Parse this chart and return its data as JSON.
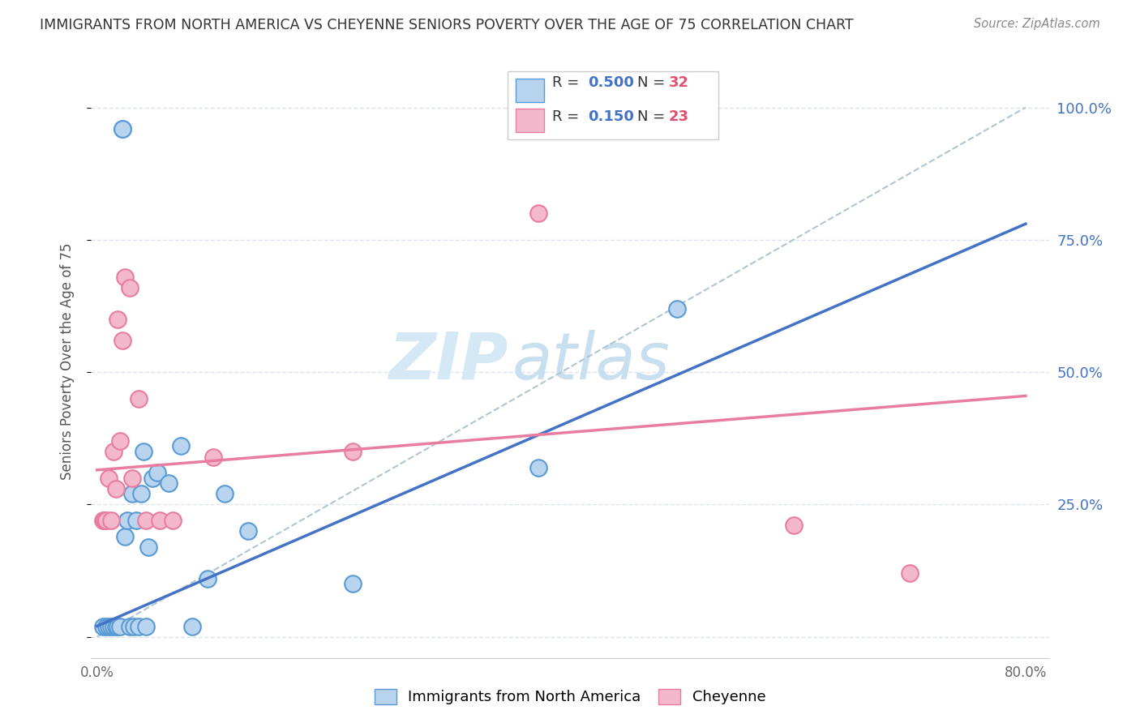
{
  "title": "IMMIGRANTS FROM NORTH AMERICA VS CHEYENNE SENIORS POVERTY OVER THE AGE OF 75 CORRELATION CHART",
  "source": "Source: ZipAtlas.com",
  "ylabel": "Seniors Poverty Over the Age of 75",
  "xlim": [
    -0.005,
    0.82
  ],
  "ylim": [
    -0.04,
    1.08
  ],
  "yticks": [
    0.0,
    0.25,
    0.5,
    0.75,
    1.0
  ],
  "ytick_labels": [
    "",
    "25.0%",
    "50.0%",
    "75.0%",
    "100.0%"
  ],
  "xticks": [
    0.0,
    0.1,
    0.2,
    0.3,
    0.4,
    0.5,
    0.6,
    0.7,
    0.8
  ],
  "xtick_labels": [
    "0.0%",
    "",
    "",
    "",
    "",
    "",
    "",
    "",
    "80.0%"
  ],
  "blue_R": 0.5,
  "blue_N": 32,
  "pink_R": 0.15,
  "pink_N": 23,
  "blue_marker_face": "#b8d4ee",
  "blue_marker_edge": "#5b9bd5",
  "pink_marker_face": "#f4b8cc",
  "pink_marker_edge": "#e87da0",
  "blue_line_color": "#4472c4",
  "pink_line_color": "#e87da0",
  "dashed_line_color": "#aec6cf",
  "watermark_zip_color": "#d5e8f5",
  "watermark_atlas_color": "#c8dff0",
  "legend_text_color": "#4472c4",
  "legend_N_color": "#e05070",
  "background_color": "#ffffff",
  "grid_color": "#dde3ee",
  "right_axis_color": "#4472c4",
  "blue_scatter_x": [
    0.022,
    0.022,
    0.005,
    0.008,
    0.01,
    0.012,
    0.014,
    0.016,
    0.018,
    0.02,
    0.024,
    0.026,
    0.028,
    0.03,
    0.032,
    0.034,
    0.036,
    0.038,
    0.04,
    0.042,
    0.044,
    0.048,
    0.052,
    0.062,
    0.072,
    0.082,
    0.11,
    0.13,
    0.22,
    0.38,
    0.5,
    0.095
  ],
  "blue_scatter_y": [
    0.96,
    0.96,
    0.02,
    0.02,
    0.02,
    0.02,
    0.02,
    0.02,
    0.02,
    0.02,
    0.19,
    0.22,
    0.02,
    0.27,
    0.02,
    0.22,
    0.02,
    0.27,
    0.35,
    0.02,
    0.17,
    0.3,
    0.31,
    0.29,
    0.36,
    0.02,
    0.27,
    0.2,
    0.1,
    0.32,
    0.62,
    0.11
  ],
  "pink_scatter_x": [
    0.005,
    0.006,
    0.007,
    0.008,
    0.01,
    0.012,
    0.014,
    0.016,
    0.018,
    0.02,
    0.022,
    0.024,
    0.03,
    0.042,
    0.054,
    0.065,
    0.1,
    0.22,
    0.38,
    0.6,
    0.7,
    0.028,
    0.036
  ],
  "pink_scatter_y": [
    0.22,
    0.22,
    0.22,
    0.22,
    0.3,
    0.22,
    0.35,
    0.28,
    0.6,
    0.37,
    0.56,
    0.68,
    0.3,
    0.22,
    0.22,
    0.22,
    0.34,
    0.35,
    0.8,
    0.21,
    0.12,
    0.66,
    0.45
  ],
  "blue_line_x0": 0.0,
  "blue_line_y0": 0.02,
  "blue_line_x1": 0.8,
  "blue_line_y1": 0.78,
  "pink_line_x0": 0.0,
  "pink_line_y0": 0.315,
  "pink_line_x1": 0.8,
  "pink_line_y1": 0.455,
  "dash_line_x0": 0.0,
  "dash_line_y0": 0.0,
  "dash_line_x1": 0.8,
  "dash_line_y1": 1.0
}
